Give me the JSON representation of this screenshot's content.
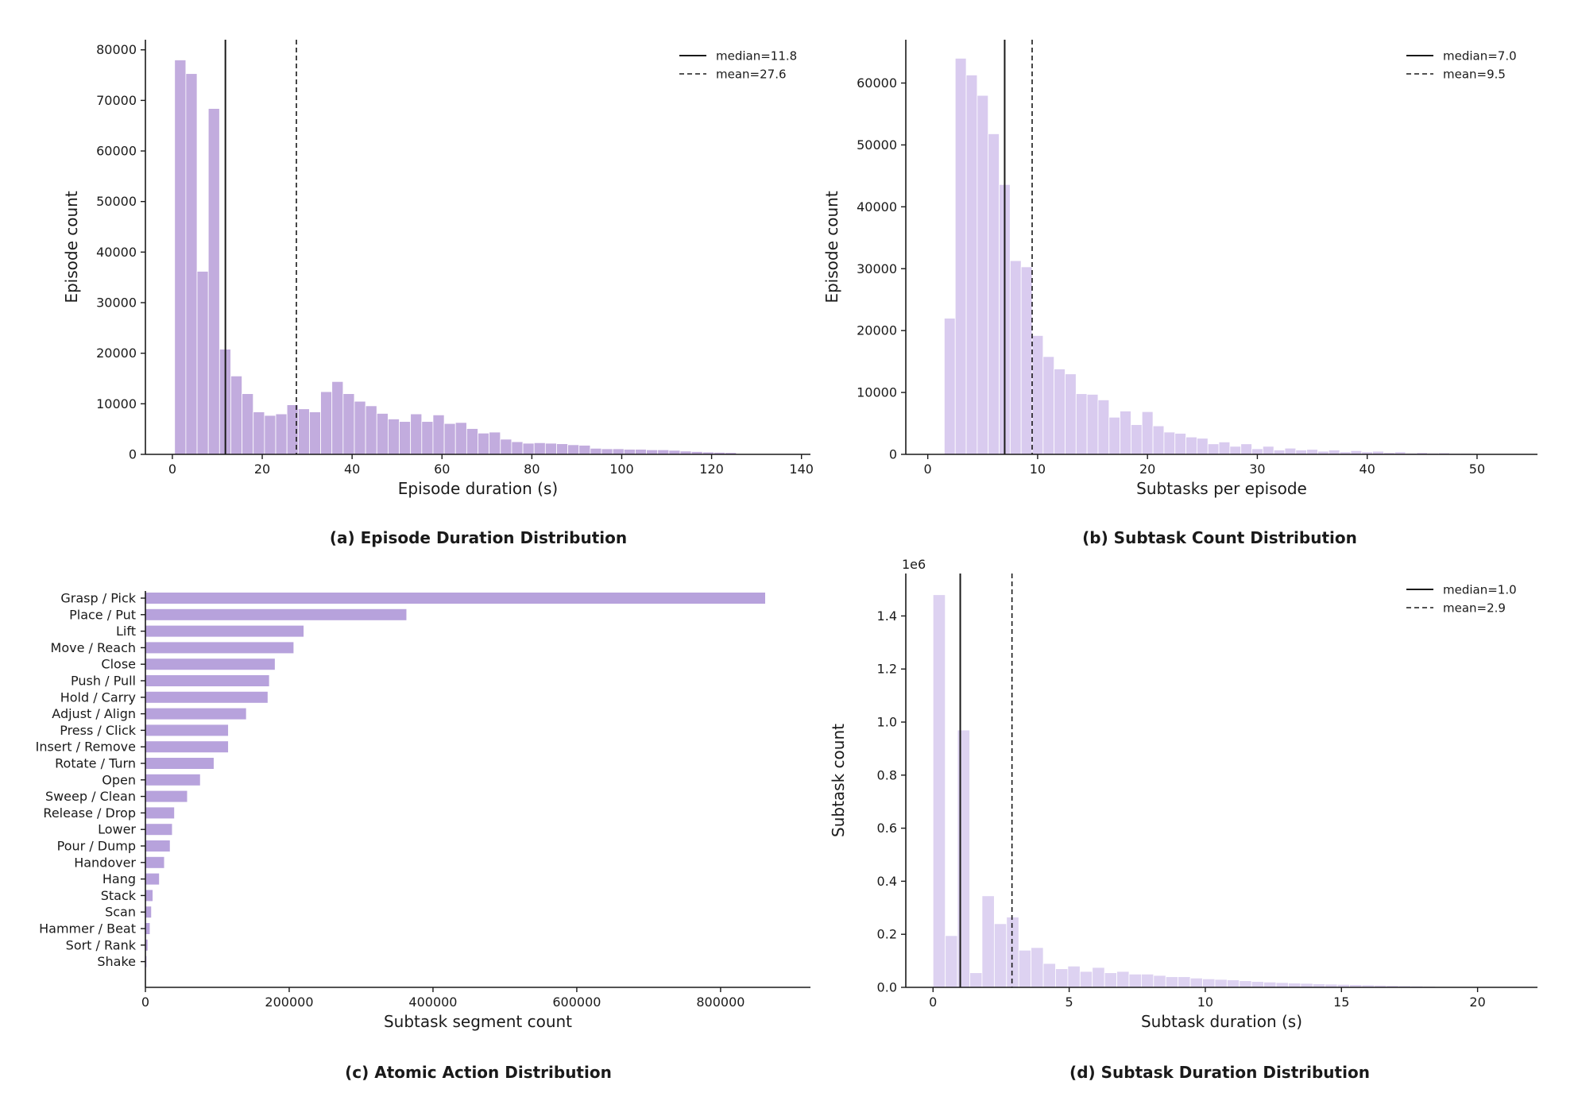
{
  "colors": {
    "bar_a": "#c2acde",
    "bar_b": "#d9cbef",
    "bar_c": "#b7a2dc",
    "bar_d": "#ddd2f1",
    "axis": "#1a1a1a"
  },
  "chart_data": [
    {
      "id": "a",
      "type": "bar",
      "caption": "(a) Episode Duration Distribution",
      "xlabel": "Episode duration (s)",
      "ylabel": "Episode count",
      "xlim": [
        -6,
        142
      ],
      "ylim": [
        0,
        82000
      ],
      "xticks": [
        "0",
        "20",
        "40",
        "60",
        "80",
        "100",
        "120",
        "140"
      ],
      "yticks": [
        "0",
        "10000",
        "20000",
        "30000",
        "40000",
        "50000",
        "60000",
        "70000",
        "80000"
      ],
      "bin_start": 0.5,
      "bin_width": 2.5,
      "values": [
        78000,
        75300,
        36200,
        68400,
        20800,
        15500,
        12000,
        8400,
        7700,
        8000,
        9800,
        9000,
        8400,
        12400,
        14400,
        12000,
        10500,
        9600,
        8100,
        7000,
        6500,
        8000,
        6500,
        7800,
        6100,
        6300,
        5100,
        4200,
        4400,
        3000,
        2500,
        2200,
        2300,
        2200,
        2100,
        1900,
        1800,
        1200,
        1100,
        1100,
        1000,
        1000,
        900,
        900,
        800,
        650,
        550,
        450,
        400,
        350
      ],
      "median": 11.8,
      "mean": 27.6,
      "legend": [
        "median=11.8",
        "mean=27.6"
      ],
      "grid": false,
      "legend_position": "top-right"
    },
    {
      "id": "b",
      "type": "bar",
      "caption": "(b) Subtask Count Distribution",
      "xlabel": "Subtasks per episode",
      "ylabel": "Episode count",
      "xlim": [
        -2,
        55.5
      ],
      "ylim": [
        0,
        67000
      ],
      "xticks": [
        "0",
        "10",
        "20",
        "30",
        "40",
        "50"
      ],
      "yticks": [
        "0",
        "10000",
        "20000",
        "30000",
        "40000",
        "50000",
        "60000"
      ],
      "bin_start": 1.5,
      "bin_width": 1,
      "values": [
        22000,
        64000,
        61300,
        58000,
        51800,
        43600,
        31300,
        30300,
        19200,
        15800,
        13800,
        13000,
        9800,
        9700,
        8800,
        6000,
        7000,
        4800,
        6900,
        4600,
        3600,
        3400,
        2800,
        2600,
        1700,
        2000,
        1300,
        1700,
        900,
        1300,
        700,
        1000,
        700,
        800,
        500,
        700,
        400,
        600,
        400,
        500,
        300,
        400,
        200,
        300,
        200,
        250,
        150,
        150,
        100,
        100
      ],
      "median": 7.0,
      "mean": 9.5,
      "legend": [
        "median=7.0",
        "mean=9.5"
      ],
      "grid": false,
      "legend_position": "top-right"
    },
    {
      "id": "c",
      "type": "bar",
      "orientation": "horizontal",
      "caption": "(c) Atomic Action Distribution",
      "xlabel": "Subtask segment count",
      "ylabel": "",
      "xlim": [
        0,
        925000
      ],
      "xticks": [
        "0",
        "200000",
        "400000",
        "600000",
        "800000"
      ],
      "categories": [
        "Grasp / Pick",
        "Place / Put",
        "Lift",
        "Move / Reach",
        "Close",
        "Push / Pull",
        "Hold / Carry",
        "Adjust / Align",
        "Press / Click",
        "Insert / Remove",
        "Rotate / Turn",
        "Open",
        "Sweep / Clean",
        "Release / Drop",
        "Lower",
        "Pour / Dump",
        "Handover",
        "Hang",
        "Stack",
        "Scan",
        "Hammer / Beat",
        "Sort / Rank",
        "Shake"
      ],
      "values": [
        862000,
        363000,
        220000,
        206000,
        180000,
        172000,
        170000,
        140000,
        115000,
        115000,
        95000,
        76000,
        58000,
        40000,
        37000,
        34000,
        26000,
        19000,
        10000,
        8000,
        6000,
        3000,
        1500
      ],
      "grid": false
    },
    {
      "id": "d",
      "type": "bar",
      "caption": "(d) Subtask Duration Distribution",
      "xlabel": "Subtask duration (s)",
      "ylabel": "Subtask count",
      "scale_label": "1e6",
      "xlim": [
        -1,
        22.2
      ],
      "ylim": [
        0,
        1.56
      ],
      "xticks": [
        "0",
        "5",
        "10",
        "15",
        "20"
      ],
      "yticks": [
        "0.0",
        "0.2",
        "0.4",
        "0.6",
        "0.8",
        "1.0",
        "1.2",
        "1.4"
      ],
      "bin_start": 0,
      "bin_width": 0.45,
      "values": [
        1.48,
        0.195,
        0.97,
        0.055,
        0.345,
        0.24,
        0.265,
        0.14,
        0.15,
        0.09,
        0.07,
        0.08,
        0.06,
        0.075,
        0.055,
        0.06,
        0.05,
        0.05,
        0.045,
        0.04,
        0.04,
        0.035,
        0.032,
        0.03,
        0.028,
        0.025,
        0.022,
        0.02,
        0.018,
        0.016,
        0.015,
        0.013,
        0.012,
        0.011,
        0.01,
        0.009,
        0.008,
        0.007,
        0.006,
        0.005,
        0.004
      ],
      "median": 1.0,
      "mean": 2.9,
      "legend": [
        "median=1.0",
        "mean=2.9"
      ],
      "grid": false,
      "legend_position": "top-right"
    }
  ]
}
